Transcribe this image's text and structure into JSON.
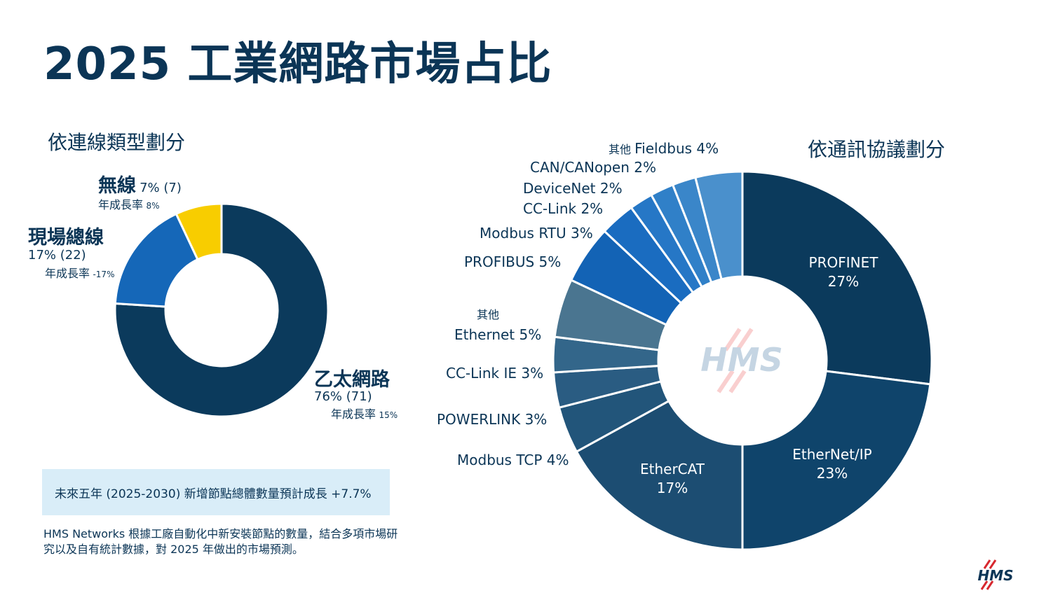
{
  "title": "2025 工業網路市場占比",
  "chart_data": [
    {
      "type": "pie",
      "subtitle": "依連線類型劃分",
      "slices": [
        {
          "name": "乙太網路",
          "value": 76,
          "prev": "(71)",
          "growth_label": "年成長率",
          "growth": "15%",
          "color": "#0b3a5c"
        },
        {
          "name": "現場總線",
          "value": 17,
          "prev": "(22)",
          "growth_label": "年成長率",
          "growth": "-17%",
          "color": "#1567b8"
        },
        {
          "name": "無線",
          "value": 7,
          "prev": "(7)",
          "growth_label": "年成長率",
          "growth": "8%",
          "color": "#f8cd00"
        }
      ]
    },
    {
      "type": "pie",
      "subtitle": "依通訊協議劃分",
      "slices": [
        {
          "name": "PROFINET",
          "value": 27,
          "color": "#0b3a5c"
        },
        {
          "name": "EtherNet/IP",
          "value": 23,
          "color": "#0f446b"
        },
        {
          "name": "EtherCAT",
          "value": 17,
          "color": "#1c4d72"
        },
        {
          "name": "Modbus TCP",
          "value": 4,
          "color": "#22557a"
        },
        {
          "name": "POWERLINK",
          "value": 3,
          "color": "#2a5c82"
        },
        {
          "name": "CC-Link IE",
          "value": 3,
          "color": "#33668a"
        },
        {
          "name": "其他 Ethernet",
          "value": 5,
          "color": "#4a7590"
        },
        {
          "name": "PROFIBUS",
          "value": 5,
          "color": "#1363b5"
        },
        {
          "name": "Modbus RTU",
          "value": 3,
          "color": "#1a6cc0"
        },
        {
          "name": "CC-Link",
          "value": 2,
          "color": "#2677c6"
        },
        {
          "name": "DeviceNet",
          "value": 2,
          "color": "#3080c8"
        },
        {
          "name": "CAN/CANopen",
          "value": 2,
          "color": "#3a86c9"
        },
        {
          "name": "其他 Fieldbus",
          "value": 4,
          "color": "#4a90cc"
        }
      ]
    }
  ],
  "labels": {
    "wireless_name": "無線",
    "wireless_val": "7% (7)",
    "wireless_growth_label": "年成長率",
    "wireless_growth": "8%",
    "fieldbus_name": "現場總線",
    "fieldbus_val": "17% (22)",
    "fieldbus_growth_label": "年成長率",
    "fieldbus_growth": "-17%",
    "ethernet_name": "乙太網路",
    "ethernet_val": "76% (71)",
    "ethernet_growth_label": "年成長率",
    "ethernet_growth": "15%",
    "other_fieldbus_small": "其他",
    "other_fieldbus": "Fieldbus 4%",
    "can": "CAN/CANopen 2%",
    "devicenet": "DeviceNet 2%",
    "cclink": "CC-Link 2%",
    "modbus_rtu": "Modbus RTU 3%",
    "profibus": "PROFIBUS 5%",
    "other_eth_small": "其他",
    "other_eth": "Ethernet 5%",
    "cclink_ie": "CC-Link IE 3%",
    "powerlink": "POWERLINK 3%",
    "modbus_tcp": "Modbus TCP 4%",
    "profinet_name": "PROFINET",
    "profinet_val": "27%",
    "ethernetip_name": "EtherNet/IP",
    "ethernetip_val": "23%",
    "ethercat_name": "EtherCAT",
    "ethercat_val": "17%"
  },
  "callout": "未來五年 (2025-2030) 新增節點總體數量預計成長 +7.7%",
  "note": "HMS Networks 根據工廠自動化中新安裝節點的數量，結合多項市場研究以及自有統計數據，對 2025 年做出的市場預測。",
  "logo_text": "HMS",
  "colors": {
    "navy": "#0b3556",
    "wireless": "#f8cd00",
    "fieldbus": "#1567b8",
    "callout_bg": "#d9edf8",
    "logo_red": "#d7282f"
  }
}
